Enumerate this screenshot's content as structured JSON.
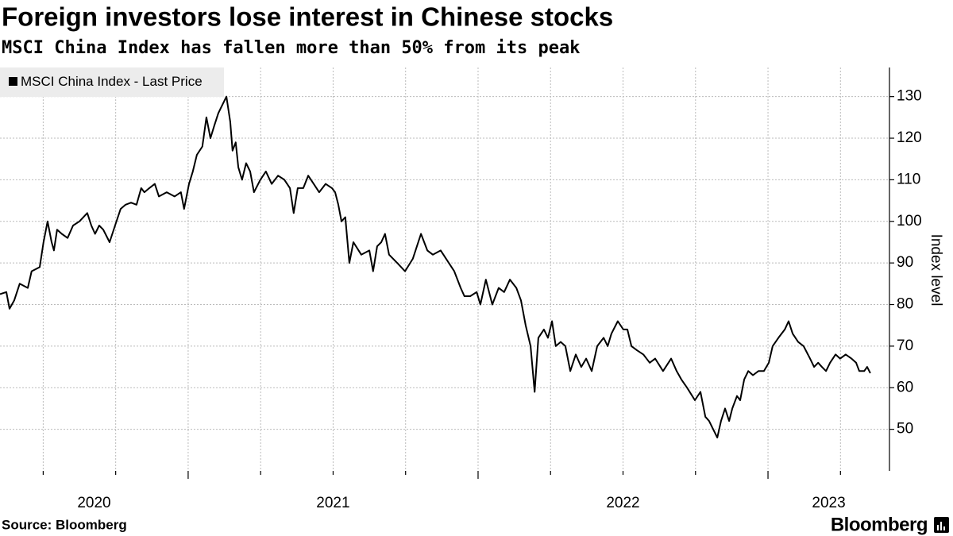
{
  "chart_data": {
    "type": "line",
    "title": "Foreign investors lose interest in Chinese stocks",
    "subtitle": "MSCI China Index has fallen more than 50% from its peak",
    "y_axis_label": "Index level",
    "source": "Source: Bloomberg",
    "logo": "Bloomberg",
    "legend_position": "upper left",
    "grid": true,
    "xlim": [
      2020.351,
      2023.419
    ],
    "xticks": [
      {
        "value": 2020,
        "label": "2020"
      },
      {
        "value": 2021,
        "label": "2021"
      },
      {
        "value": 2022,
        "label": "2022"
      },
      {
        "value": 2023,
        "label": "2023"
      }
    ],
    "ylim": [
      40,
      137
    ],
    "yticks": [
      50,
      60,
      70,
      80,
      90,
      100,
      110,
      120,
      130
    ],
    "x": [
      2020.351,
      2020.373,
      2020.384,
      2020.4,
      2020.419,
      2020.447,
      2020.46,
      2020.488,
      2020.501,
      2020.515,
      2020.529,
      2020.537,
      2020.548,
      2020.564,
      2020.584,
      2020.603,
      2020.625,
      2020.652,
      2020.666,
      2020.679,
      2020.693,
      2020.707,
      2020.729,
      2020.748,
      2020.767,
      2020.784,
      2020.803,
      2020.822,
      2020.838,
      2020.849,
      2020.866,
      2020.885,
      2020.899,
      2020.926,
      2020.953,
      2020.975,
      2020.986,
      2021.003,
      2021.016,
      2021.03,
      2021.049,
      2021.063,
      2021.077,
      2021.09,
      2021.104,
      2021.118,
      2021.132,
      2021.145,
      2021.153,
      2021.164,
      2021.173,
      2021.186,
      2021.2,
      2021.214,
      2021.227,
      2021.249,
      2021.268,
      2021.288,
      2021.31,
      2021.332,
      2021.351,
      2021.364,
      2021.378,
      2021.397,
      2021.414,
      2021.433,
      2021.452,
      2021.474,
      2021.496,
      2021.507,
      2021.518,
      2021.529,
      2021.542,
      2021.556,
      2021.57,
      2021.597,
      2021.625,
      2021.638,
      2021.652,
      2021.666,
      2021.679,
      2021.693,
      2021.721,
      2021.748,
      2021.775,
      2021.803,
      2021.825,
      2021.844,
      2021.871,
      2021.899,
      2021.918,
      2021.94,
      2021.953,
      2021.973,
      2021.995,
      2022.008,
      2022.027,
      2022.049,
      2022.071,
      2022.09,
      2022.11,
      2022.132,
      2022.148,
      2022.164,
      2022.181,
      2022.195,
      2022.208,
      2022.227,
      2022.241,
      2022.255,
      2022.268,
      2022.285,
      2022.301,
      2022.318,
      2022.337,
      2022.356,
      2022.373,
      2022.392,
      2022.411,
      2022.433,
      2022.447,
      2022.46,
      2022.482,
      2022.501,
      2022.515,
      2022.529,
      2022.548,
      2022.57,
      2022.592,
      2022.611,
      2022.638,
      2022.666,
      2022.685,
      2022.701,
      2022.721,
      2022.748,
      2022.767,
      2022.784,
      2022.797,
      2022.811,
      2022.825,
      2022.838,
      2022.852,
      2022.866,
      2022.877,
      2022.893,
      2022.904,
      2022.918,
      2022.932,
      2022.948,
      2022.967,
      2022.986,
      2023.003,
      2023.016,
      2023.036,
      2023.058,
      2023.071,
      2023.085,
      2023.104,
      2023.123,
      2023.145,
      2023.159,
      2023.173,
      2023.186,
      2023.2,
      2023.214,
      2023.233,
      2023.249,
      2023.268,
      2023.288,
      2023.304,
      2023.315,
      2023.332,
      2023.342,
      2023.353
    ],
    "series": [
      {
        "name": "MSCI China Index - Last Price",
        "color": "#000000",
        "values": [
          82.5,
          83,
          79,
          81,
          85,
          84,
          88,
          89,
          95,
          100,
          95,
          93,
          98,
          97,
          96,
          99,
          100,
          102,
          99,
          97,
          99,
          98,
          95,
          99,
          103,
          104,
          104.5,
          104,
          108,
          107,
          108,
          109,
          106,
          107,
          106,
          107,
          103,
          109,
          112,
          116,
          118,
          125,
          120,
          123,
          126,
          128,
          130,
          124,
          117,
          119,
          113,
          110,
          114,
          112,
          107,
          110,
          112,
          109,
          111,
          110,
          108,
          102,
          108,
          108,
          111,
          109,
          107,
          109,
          108,
          107,
          104,
          100,
          101,
          90,
          95,
          92,
          93,
          88,
          94,
          95,
          97,
          92,
          90,
          88,
          91,
          97,
          93,
          92,
          93,
          90,
          88,
          84,
          82,
          82,
          83,
          80,
          86,
          80,
          84,
          83,
          86,
          84,
          81,
          75,
          70,
          59,
          72,
          74,
          72,
          76,
          70,
          71,
          70,
          64,
          68,
          65,
          67,
          64,
          70,
          72,
          70,
          73,
          76,
          74,
          74,
          70,
          69,
          68,
          66,
          67,
          64,
          67,
          64,
          62,
          60,
          57,
          59,
          53,
          52,
          50,
          48,
          52,
          55,
          52,
          55,
          58,
          57,
          62,
          64,
          63,
          64,
          64,
          66,
          70,
          72,
          74,
          76,
          73,
          71,
          70,
          67,
          65,
          66,
          65,
          64,
          66,
          68,
          67,
          68,
          67,
          66,
          64,
          64,
          65,
          63.5
        ]
      }
    ]
  }
}
